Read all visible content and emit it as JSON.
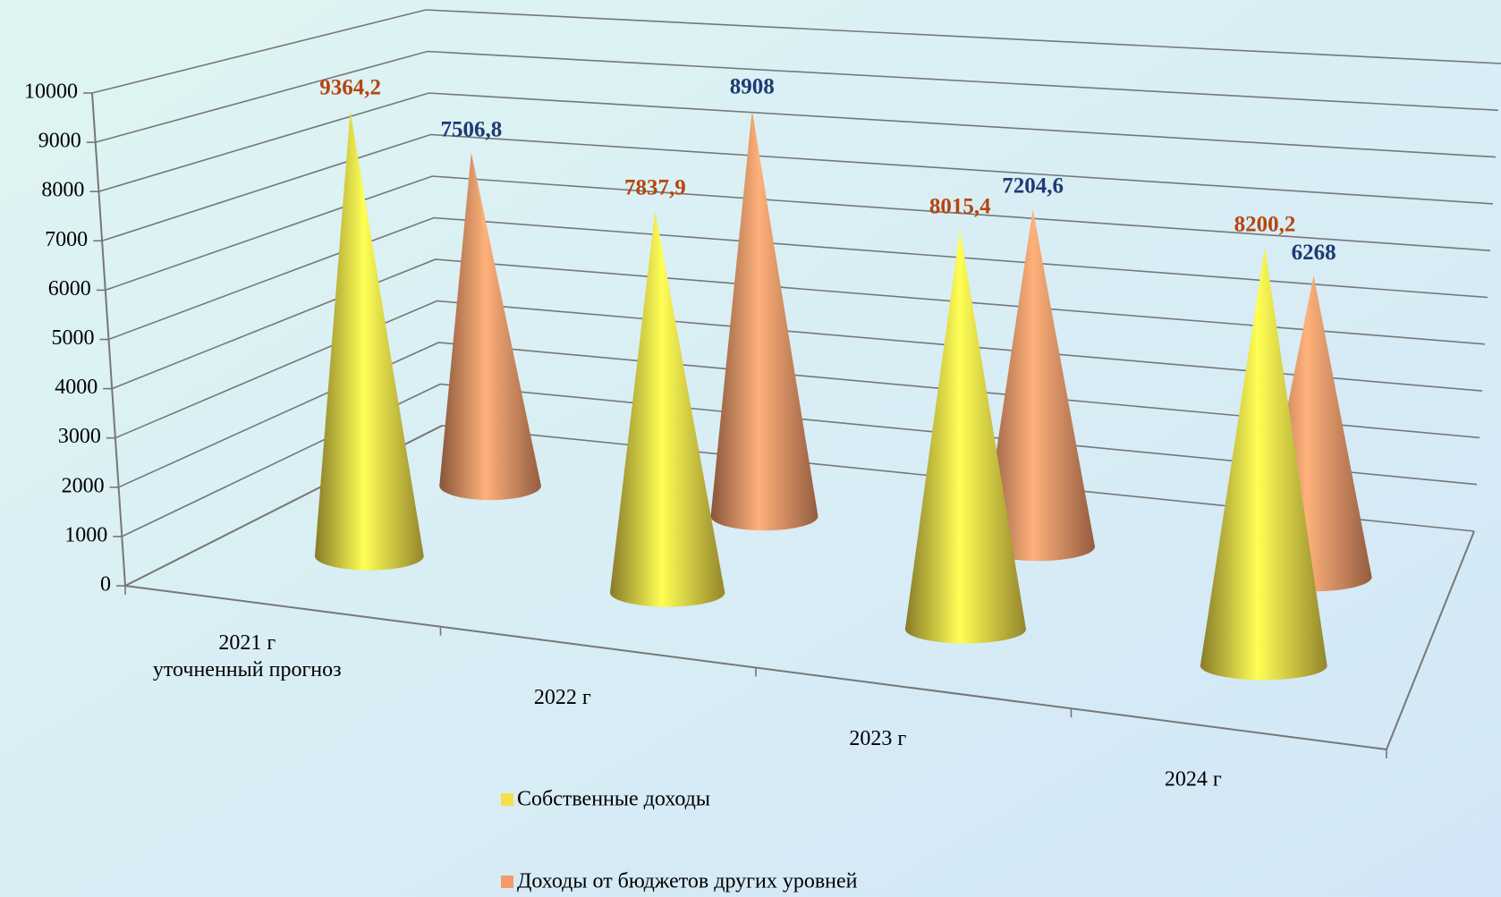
{
  "chart_data": {
    "type": "cone3d",
    "categories": [
      "2021 г\nуточненный прогноз",
      "2022 г",
      "2023 г",
      "2024 г"
    ],
    "series": [
      {
        "name": "Собственные доходы",
        "color": "#f5e04a",
        "label_color": "#b5460f",
        "values": [
          9364.2,
          7837.9,
          8015.4,
          8200.2
        ],
        "value_labels": [
          "9364,2",
          "7837,9",
          "8015,4",
          "8200,2"
        ]
      },
      {
        "name": "Доходы от бюджетов других уровней",
        "color": "#f59a6a",
        "label_color": "#1f3a73",
        "values": [
          7506.8,
          8908,
          7204.6,
          6268
        ],
        "value_labels": [
          "7506,8",
          "8908",
          "7204,6",
          "6268"
        ]
      }
    ],
    "ylim": [
      0,
      10000
    ],
    "yticks": [
      0,
      1000,
      2000,
      3000,
      4000,
      5000,
      6000,
      7000,
      8000,
      9000,
      10000
    ],
    "grid": true
  }
}
